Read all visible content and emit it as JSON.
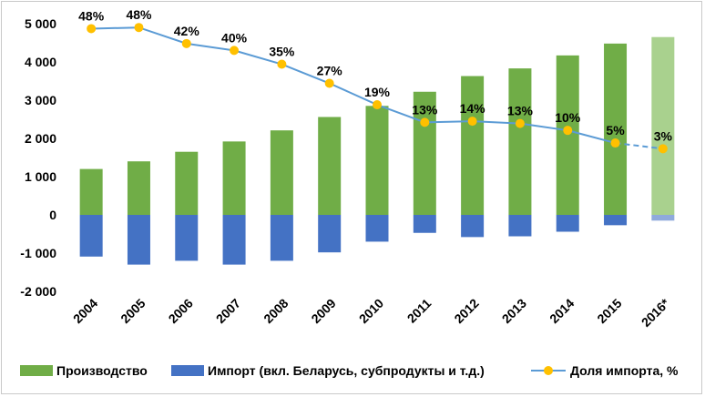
{
  "chart_data": {
    "type": "bar",
    "title": "",
    "xlabel": "",
    "ylabel": "",
    "ylim": [
      -2000,
      5000
    ],
    "y_ticks": [
      5000,
      4000,
      3000,
      2000,
      1000,
      0,
      -1000,
      -2000
    ],
    "y_tick_labels": [
      "5 000",
      "4 000",
      "3 000",
      "2 000",
      "1 000",
      "0",
      "-1 000",
      "-2 000"
    ],
    "categories": [
      "2004",
      "2005",
      "2006",
      "2007",
      "2008",
      "2009",
      "2010",
      "2011",
      "2012",
      "2013",
      "2014",
      "2015",
      "2016*"
    ],
    "forecast_index": 12,
    "series": [
      {
        "name": "Производство",
        "kind": "bar",
        "color": "#70ad47",
        "forecast_color": "#a9d18e",
        "values": [
          1200,
          1400,
          1650,
          1920,
          2210,
          2560,
          2850,
          3220,
          3630,
          3830,
          4170,
          4480,
          4650
        ]
      },
      {
        "name": "Импорт (вкл. Беларусь, субпродукты и т.д.)",
        "kind": "bar",
        "color": "#4472c4",
        "forecast_color": "#8faadc",
        "values": [
          -1090,
          -1300,
          -1200,
          -1300,
          -1200,
          -980,
          -700,
          -470,
          -580,
          -560,
          -440,
          -270,
          -150
        ]
      },
      {
        "name": "Доля импорта, %",
        "kind": "line",
        "color": "#5b9bd5",
        "marker_color": "#ffc000",
        "values_axis_units": [
          4870,
          4900,
          4480,
          4300,
          3940,
          3440,
          2880,
          2420,
          2450,
          2390,
          2210,
          1880,
          1730
        ],
        "labels": [
          "48%",
          "48%",
          "42%",
          "40%",
          "35%",
          "27%",
          "19%",
          "13%",
          "14%",
          "13%",
          "10%",
          "5%",
          "3%"
        ]
      }
    ],
    "legend": {
      "position": "bottom",
      "entries": [
        "Производство",
        "Импорт (вкл. Беларусь, субпродукты и т.д.)",
        "Доля импорта, %"
      ]
    },
    "grid": false
  }
}
